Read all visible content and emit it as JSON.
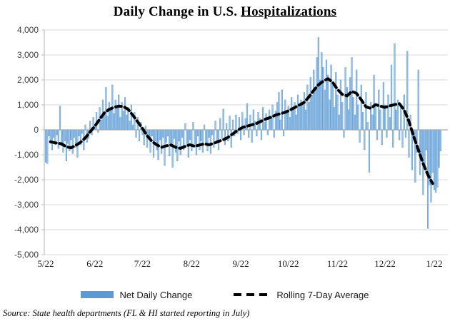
{
  "title_prefix": "Daily Change in U.S. ",
  "title_underlined": "Hospitalizations",
  "legend": {
    "bar_label": "Net Daily Change",
    "line_label": "Rolling 7-Day Average"
  },
  "source_text": "Source: State health departments (FL & HI started reporting in July)",
  "colors": {
    "bar_fill": "#9dc3e6",
    "bar_stroke": "#5b9bd5",
    "legend_bar": "#5b9bd5",
    "avg_line": "#000000",
    "gridline": "#d9d9d9",
    "zero_line": "#a6a6a6",
    "axis_line": "#bfbfbf"
  },
  "chart_data": {
    "type": "bar+line",
    "title": "Daily Change in U.S. Hospitalizations",
    "ylim": [
      -5000,
      4000
    ],
    "y_tick_step": 1000,
    "y_tick_labels": [
      "4,000",
      "3,000",
      "2,000",
      "1,000",
      "0",
      "-1,000",
      "-2,000",
      "-3,000",
      "-4,000",
      "-5,000"
    ],
    "x_ticks": [
      {
        "label": "5/22",
        "day": 0
      },
      {
        "label": "6/22",
        "day": 31
      },
      {
        "label": "7/22",
        "day": 61
      },
      {
        "label": "8/22",
        "day": 92
      },
      {
        "label": "9/22",
        "day": 123
      },
      {
        "label": "10/22",
        "day": 153
      },
      {
        "label": "11/22",
        "day": 184
      },
      {
        "label": "12/22",
        "day": 214
      },
      {
        "label": "1/22",
        "day": 245
      }
    ],
    "grid": true,
    "legend_position": "bottom",
    "series": [
      {
        "name": "Net Daily Change",
        "type": "bar",
        "start_date": "5/22",
        "values": [
          -1300,
          -1350,
          -250,
          -450,
          -800,
          -300,
          -600,
          -200,
          -750,
          950,
          -650,
          -900,
          -450,
          -1250,
          -550,
          -850,
          -400,
          -950,
          -300,
          -700,
          -1100,
          -250,
          -600,
          -150,
          -800,
          200,
          -500,
          -350,
          350,
          -200,
          500,
          150,
          700,
          -100,
          900,
          400,
          1200,
          650,
          1700,
          550,
          1100,
          800,
          1800,
          650,
          1200,
          900,
          1400,
          500,
          1100,
          750,
          1300,
          600,
          900,
          350,
          1000,
          200,
          700,
          -300,
          500,
          -450,
          300,
          -200,
          -600,
          150,
          -700,
          -350,
          -900,
          -250,
          -1100,
          -450,
          -800,
          -1200,
          -400,
          -950,
          -300,
          -1430,
          -500,
          -250,
          -1050,
          -600,
          -1500,
          -350,
          -900,
          -1250,
          -450,
          -1000,
          -300,
          -800,
          250,
          -650,
          -1100,
          -400,
          -850,
          300,
          -700,
          -1000,
          -250,
          -800,
          -450,
          -900,
          200,
          -600,
          -850,
          -300,
          -950,
          -200,
          -700,
          350,
          -500,
          -800,
          450,
          -350,
          830,
          -600,
          250,
          -450,
          550,
          -700,
          400,
          -250,
          600,
          -150,
          500,
          -400,
          700,
          -200,
          450,
          1050,
          -300,
          600,
          -500,
          800,
          350,
          -250,
          700,
          450,
          -400,
          900,
          300,
          650,
          -200,
          800,
          550,
          1000,
          -300,
          750,
          1100,
          1500,
          400,
          1600,
          -250,
          1200,
          700,
          950,
          500,
          1300,
          800,
          1100,
          600,
          1400,
          900,
          1200,
          1000,
          1500,
          800,
          1800,
          1100,
          2100,
          1400,
          2400,
          1700,
          2900,
          3700,
          2000,
          3100,
          2500,
          1600,
          2800,
          2200,
          1200,
          2600,
          1800,
          900,
          2300,
          1400,
          600,
          2000,
          1100,
          -300,
          2500,
          1700,
          800,
          2100,
          2900,
          1300,
          600,
          2400,
          1000,
          -500,
          1800,
          700,
          -800,
          1500,
          300,
          -1700,
          1100,
          600,
          2200,
          900,
          -400,
          1600,
          800,
          -600,
          1900,
          1000,
          -300,
          1400,
          500,
          2600,
          -700,
          3450,
          800,
          1200,
          -400,
          900,
          -700,
          1400,
          -300,
          3150,
          -1100,
          600,
          -1600,
          -400,
          -2100,
          -900,
          2400,
          -1800,
          -1200,
          -2600,
          -1500,
          -800,
          -3950,
          -2200,
          -2900,
          -1700,
          -2400,
          -2500,
          -2300,
          -1500,
          -850
        ]
      },
      {
        "name": "Rolling 7-Day Average",
        "type": "dashed-line",
        "anchors": [
          [
            3,
            -480
          ],
          [
            6,
            -520
          ],
          [
            10,
            -560
          ],
          [
            13,
            -680
          ],
          [
            16,
            -720
          ],
          [
            19,
            -620
          ],
          [
            22,
            -500
          ],
          [
            25,
            -320
          ],
          [
            28,
            -80
          ],
          [
            31,
            150
          ],
          [
            34,
            420
          ],
          [
            37,
            680
          ],
          [
            40,
            820
          ],
          [
            43,
            900
          ],
          [
            46,
            950
          ],
          [
            49,
            930
          ],
          [
            52,
            820
          ],
          [
            55,
            580
          ],
          [
            58,
            320
          ],
          [
            61,
            60
          ],
          [
            64,
            -240
          ],
          [
            67,
            -460
          ],
          [
            70,
            -600
          ],
          [
            73,
            -700
          ],
          [
            76,
            -640
          ],
          [
            79,
            -610
          ],
          [
            82,
            -700
          ],
          [
            85,
            -740
          ],
          [
            88,
            -660
          ],
          [
            91,
            -600
          ],
          [
            94,
            -660
          ],
          [
            97,
            -610
          ],
          [
            100,
            -560
          ],
          [
            103,
            -600
          ],
          [
            106,
            -540
          ],
          [
            109,
            -460
          ],
          [
            112,
            -400
          ],
          [
            115,
            -300
          ],
          [
            118,
            -160
          ],
          [
            121,
            -20
          ],
          [
            124,
            90
          ],
          [
            127,
            150
          ],
          [
            130,
            200
          ],
          [
            133,
            260
          ],
          [
            136,
            350
          ],
          [
            139,
            440
          ],
          [
            142,
            500
          ],
          [
            145,
            590
          ],
          [
            148,
            650
          ],
          [
            151,
            700
          ],
          [
            154,
            790
          ],
          [
            157,
            890
          ],
          [
            160,
            990
          ],
          [
            163,
            1100
          ],
          [
            166,
            1320
          ],
          [
            169,
            1580
          ],
          [
            172,
            1800
          ],
          [
            175,
            1950
          ],
          [
            178,
            2050
          ],
          [
            181,
            1900
          ],
          [
            184,
            1620
          ],
          [
            187,
            1420
          ],
          [
            190,
            1360
          ],
          [
            193,
            1540
          ],
          [
            196,
            1460
          ],
          [
            199,
            1200
          ],
          [
            202,
            920
          ],
          [
            205,
            860
          ],
          [
            208,
            1010
          ],
          [
            211,
            950
          ],
          [
            214,
            900
          ],
          [
            217,
            960
          ],
          [
            220,
            1010
          ],
          [
            223,
            1050
          ],
          [
            226,
            800
          ],
          [
            229,
            350
          ],
          [
            232,
            -250
          ],
          [
            235,
            -800
          ],
          [
            238,
            -1350
          ],
          [
            241,
            -1800
          ],
          [
            244,
            -2150
          ]
        ]
      }
    ]
  }
}
